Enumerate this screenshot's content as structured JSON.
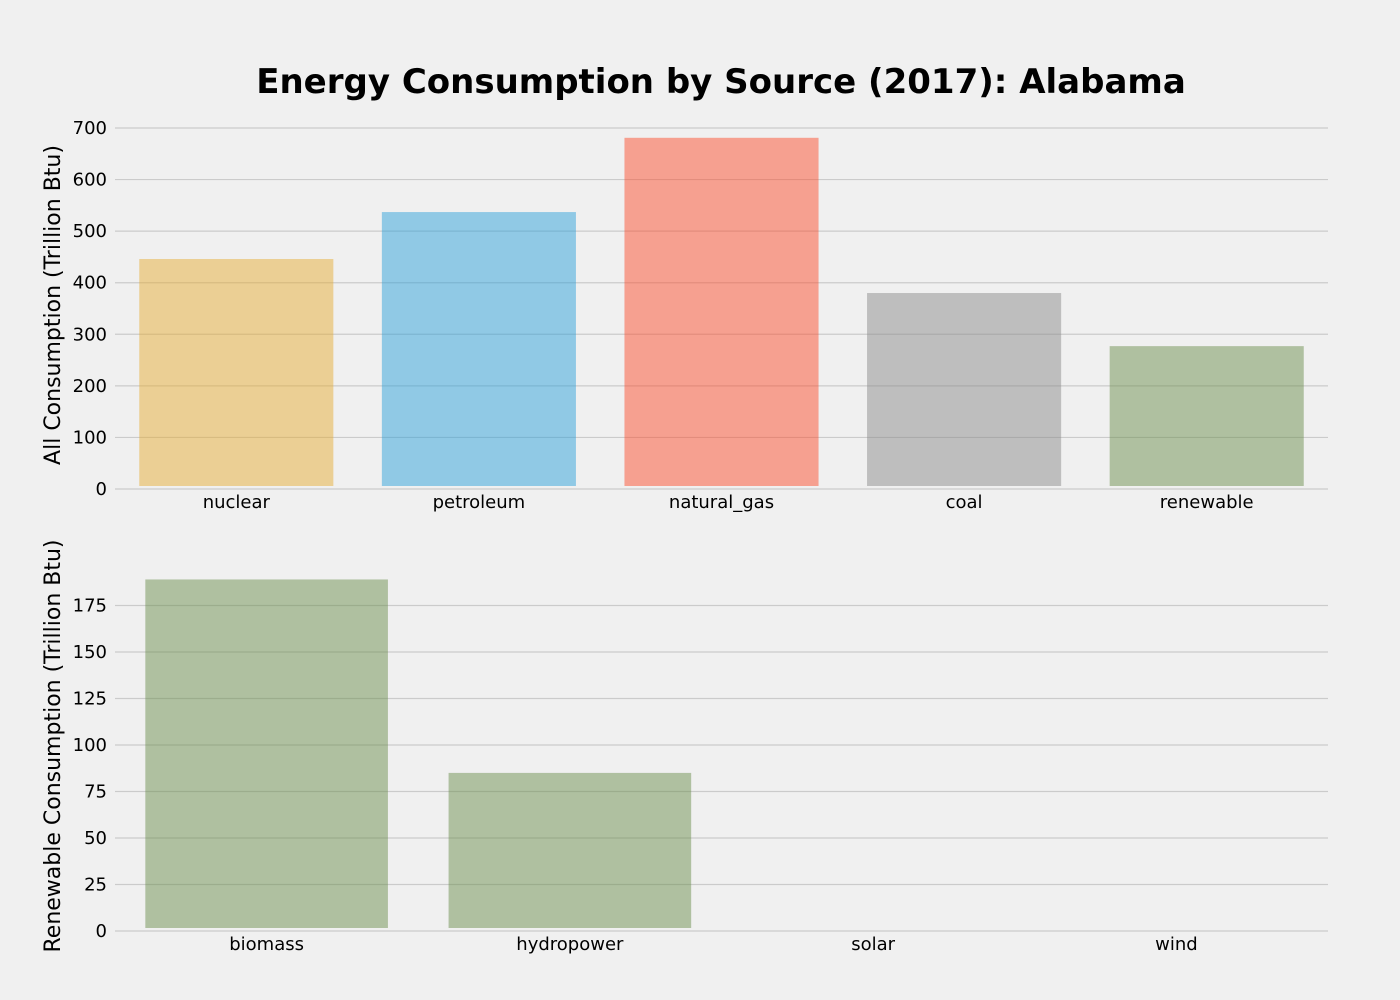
{
  "chart_data": [
    {
      "type": "bar",
      "title": "Energy Consumption by Source (2017): Alabama",
      "ylabel": "All Consumption (Trillion Btu)",
      "xlabel": "",
      "categories": [
        "nuclear",
        "petroleum",
        "natural_gas",
        "coal",
        "renewable"
      ],
      "values": [
        446,
        537,
        681,
        380,
        277
      ],
      "colors": [
        "#e5ae38",
        "#30a2da",
        "#fc4f30",
        "#8b8b8b",
        "#6d904f"
      ],
      "ylim": [
        0,
        700
      ],
      "yticks": [
        "0",
        "100",
        "200",
        "300",
        "400",
        "500",
        "600",
        "700"
      ],
      "grid": true
    },
    {
      "type": "bar",
      "title": "",
      "ylabel": "Renewable Consumption (Trillion Btu)",
      "xlabel": "",
      "categories": [
        "biomass",
        "hydropower",
        "solar",
        "wind"
      ],
      "values": [
        189,
        85,
        1,
        0
      ],
      "colors": [
        "#6d904f",
        "#6d904f",
        "#6d904f",
        "#6d904f"
      ],
      "ylim": [
        0,
        200
      ],
      "yticks": [
        "0",
        "25",
        "50",
        "75",
        "100",
        "125",
        "150",
        "175"
      ],
      "grid": true
    }
  ]
}
